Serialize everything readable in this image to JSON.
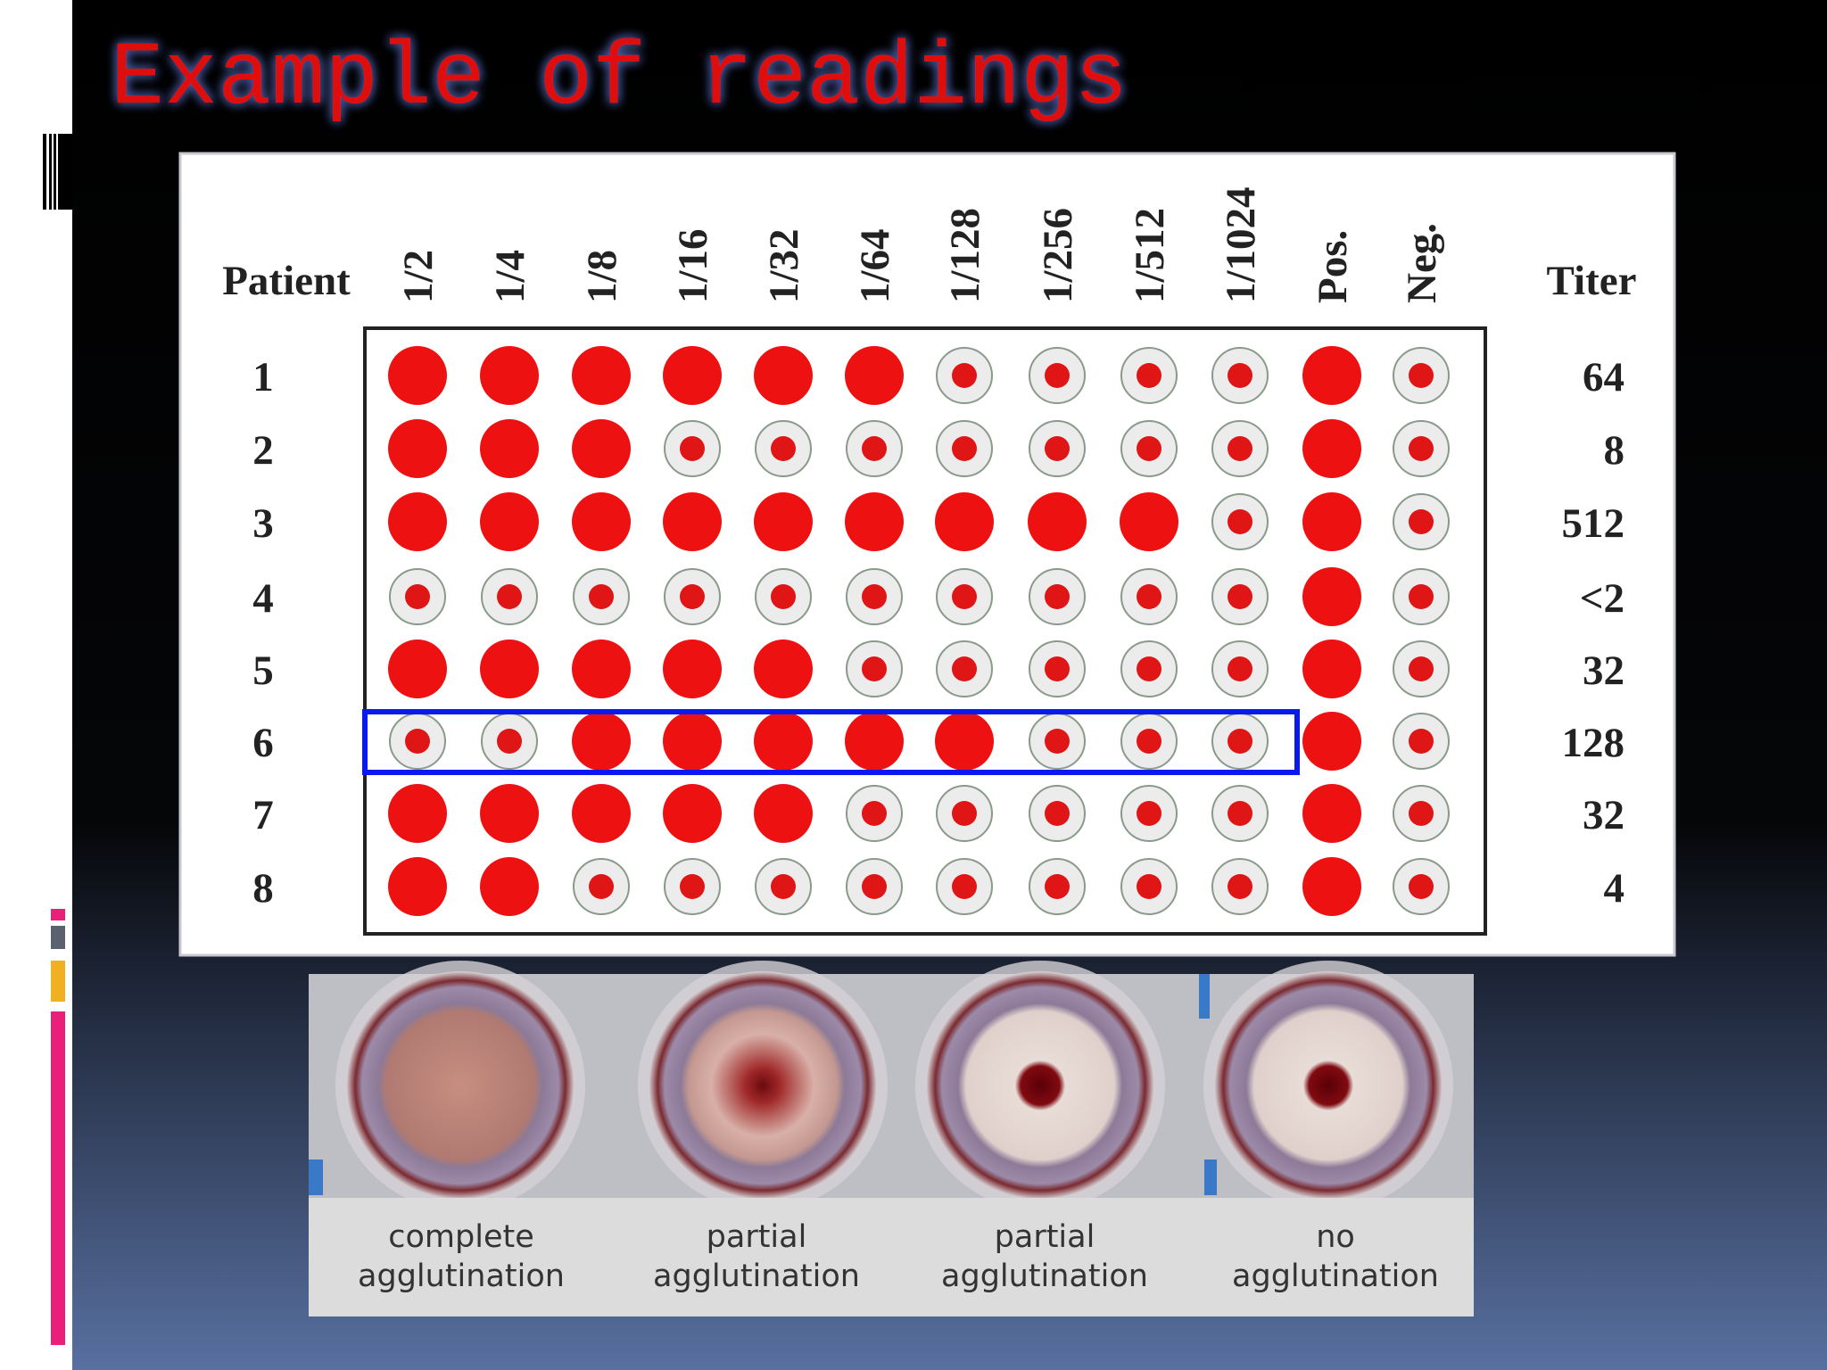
{
  "title": "Example of readings",
  "table": {
    "row_header": "Patient",
    "columns": [
      "1/2",
      "1/4",
      "1/8",
      "1/16",
      "1/32",
      "1/64",
      "1/128",
      "1/256",
      "1/512",
      "1/1024",
      "Pos.",
      "Neg."
    ],
    "result_header": "Titer",
    "rows": [
      {
        "patient": "1",
        "titer": "64"
      },
      {
        "patient": "2",
        "titer": "8"
      },
      {
        "patient": "3",
        "titer": "512"
      },
      {
        "patient": "4",
        "titer": "<2"
      },
      {
        "patient": "5",
        "titer": "32"
      },
      {
        "patient": "6",
        "titer": "128"
      },
      {
        "patient": "7",
        "titer": "32"
      },
      {
        "patient": "8",
        "titer": "4"
      }
    ]
  },
  "captions": [
    [
      "complete",
      "agglutination"
    ],
    [
      "partial",
      "agglutination"
    ],
    [
      "partial",
      "agglutination"
    ],
    [
      "no",
      "agglutination"
    ]
  ]
}
